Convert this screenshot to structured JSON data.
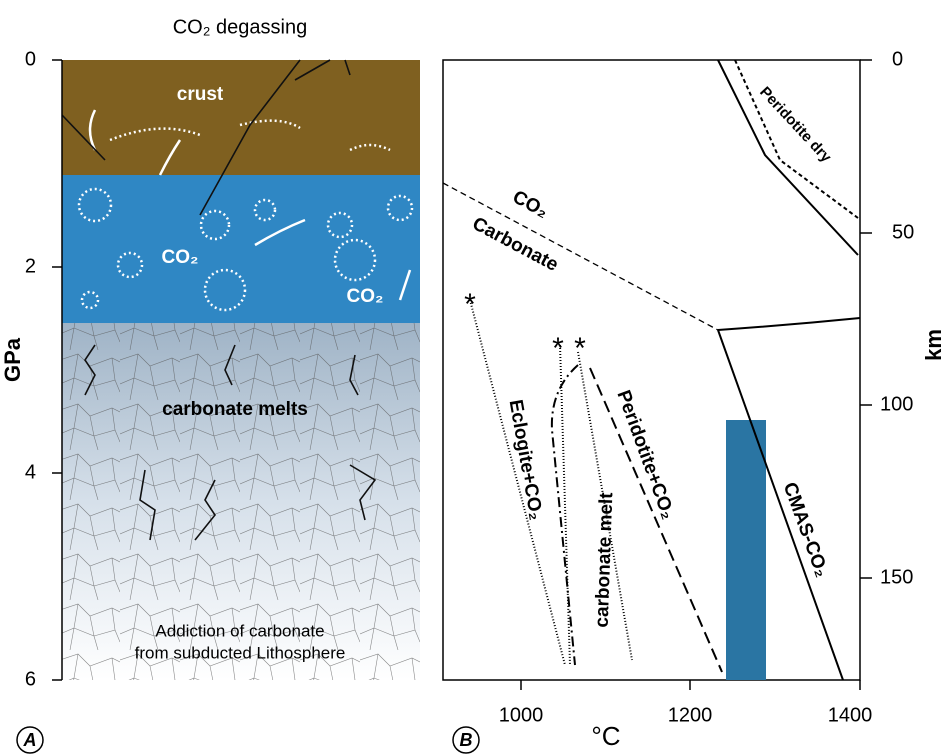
{
  "panel_a": {
    "title": "CO₂ degassing",
    "y_label": "GPa",
    "y_ticks": [
      "0",
      "2",
      "4",
      "6"
    ],
    "layers": {
      "crust": "crust",
      "co2_left": "CO₂",
      "co2_right": "CO₂",
      "melts": "carbonate melts"
    },
    "note": [
      "Addiction of carbonate",
      "from subducted Lithosphere"
    ],
    "panel_label": "A"
  },
  "panel_b": {
    "x_ticks": [
      "1000",
      "1200",
      "1400"
    ],
    "x_label": "°C",
    "y2_label": "km",
    "y2_ticks": [
      "0",
      "50",
      "100",
      "150"
    ],
    "curves": {
      "peridotite_dry": "Peridotite dry",
      "co2": "CO₂",
      "carbonate": "Carbonate",
      "eclogite": "Eclogite+CO₂",
      "carbonate_melt": "carbonate melt",
      "peridotite_co2": "Peridotite+CO₂",
      "cmas": "CMAS-CO₂"
    },
    "panel_label": "B"
  }
}
